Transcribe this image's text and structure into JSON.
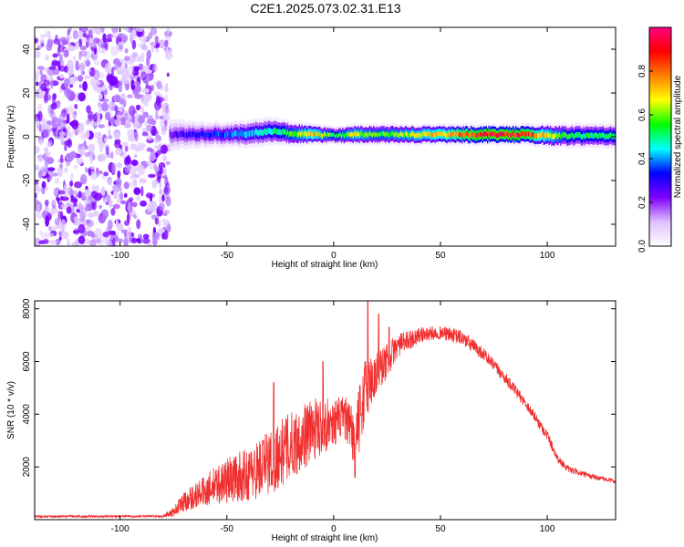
{
  "figure": {
    "title": "C2E1.2025.073.02.31.E13"
  },
  "chart_data": [
    {
      "type": "heatmap",
      "xlabel": "Height of straight line (km)",
      "ylabel": "Frequency (Hz)",
      "xlim": [
        -140,
        132
      ],
      "ylim": [
        -50,
        50
      ],
      "x_ticks": [
        -100,
        -50,
        0,
        50,
        100
      ],
      "y_ticks": [
        -40,
        -20,
        0,
        20,
        40
      ],
      "colorbar": {
        "label": "Normalized spectral amplitude",
        "range": [
          0,
          1
        ],
        "ticks": [
          0.0,
          0.2,
          0.4,
          0.6,
          0.8
        ],
        "tick_labels": [
          "0.0",
          "0.2",
          "0.4",
          "0.6",
          "0.8"
        ],
        "colors": [
          "#ffffff",
          "#e0c0ff",
          "#8000ff",
          "#0000ff",
          "#00ffff",
          "#00ff00",
          "#ffff00",
          "#ff8000",
          "#ff0000",
          "#ff0080"
        ]
      },
      "noise_region_x": [
        -140,
        -77
      ],
      "signal": [
        {
          "x": -77,
          "freq": 1.0,
          "amp": 0.25,
          "width": 4.5
        },
        {
          "x": -70,
          "freq": 1.0,
          "amp": 0.3,
          "width": 4.0
        },
        {
          "x": -60,
          "freq": 1.0,
          "amp": 0.35,
          "width": 3.5
        },
        {
          "x": -50,
          "freq": 1.0,
          "amp": 0.4,
          "width": 3.5
        },
        {
          "x": -40,
          "freq": 1.5,
          "amp": 0.45,
          "width": 4.0
        },
        {
          "x": -30,
          "freq": 2.5,
          "amp": 0.5,
          "width": 4.0
        },
        {
          "x": -20,
          "freq": 1.5,
          "amp": 0.6,
          "width": 3.5
        },
        {
          "x": -10,
          "freq": 1.0,
          "amp": 0.75,
          "width": 3.0
        },
        {
          "x": 0,
          "freq": 0.5,
          "amp": 0.55,
          "width": 2.5
        },
        {
          "x": 10,
          "freq": 1.0,
          "amp": 0.7,
          "width": 3.0
        },
        {
          "x": 20,
          "freq": 1.0,
          "amp": 0.6,
          "width": 3.0
        },
        {
          "x": 30,
          "freq": 1.0,
          "amp": 0.65,
          "width": 3.0
        },
        {
          "x": 40,
          "freq": 1.0,
          "amp": 0.7,
          "width": 3.0
        },
        {
          "x": 50,
          "freq": 1.0,
          "amp": 0.75,
          "width": 3.0
        },
        {
          "x": 60,
          "freq": 1.0,
          "amp": 0.85,
          "width": 3.0
        },
        {
          "x": 70,
          "freq": 1.0,
          "amp": 0.95,
          "width": 3.0
        },
        {
          "x": 80,
          "freq": 1.0,
          "amp": 0.95,
          "width": 3.0
        },
        {
          "x": 90,
          "freq": 1.0,
          "amp": 0.9,
          "width": 3.0
        },
        {
          "x": 100,
          "freq": 0.5,
          "amp": 0.7,
          "width": 3.5
        },
        {
          "x": 110,
          "freq": 0.5,
          "amp": 0.55,
          "width": 3.5
        },
        {
          "x": 120,
          "freq": 0.5,
          "amp": 0.55,
          "width": 3.5
        },
        {
          "x": 132,
          "freq": 0.5,
          "amp": 0.55,
          "width": 3.5
        }
      ]
    },
    {
      "type": "line",
      "xlabel": "Height of straight line (km)",
      "ylabel": "SNR (10 * v/v)",
      "xlim": [
        -140,
        132
      ],
      "ylim": [
        0,
        8300
      ],
      "x_ticks": [
        -100,
        -50,
        0,
        50,
        100
      ],
      "y_ticks": [
        2000,
        4000,
        6000,
        8000
      ],
      "color": "#f03030",
      "envelope": [
        {
          "x": -140,
          "mean": 120,
          "jitter": 40
        },
        {
          "x": -80,
          "mean": 130,
          "jitter": 40
        },
        {
          "x": -75,
          "mean": 300,
          "jitter": 200
        },
        {
          "x": -70,
          "mean": 700,
          "jitter": 400
        },
        {
          "x": -60,
          "mean": 1100,
          "jitter": 600
        },
        {
          "x": -50,
          "mean": 1500,
          "jitter": 900
        },
        {
          "x": -40,
          "mean": 1700,
          "jitter": 1000
        },
        {
          "x": -30,
          "mean": 2200,
          "jitter": 1300
        },
        {
          "x": -20,
          "mean": 2800,
          "jitter": 1300
        },
        {
          "x": -10,
          "mean": 3400,
          "jitter": 1200
        },
        {
          "x": 0,
          "mean": 3700,
          "jitter": 900
        },
        {
          "x": 5,
          "mean": 3900,
          "jitter": 800
        },
        {
          "x": 10,
          "mean": 3000,
          "jitter": 1200
        },
        {
          "x": 15,
          "mean": 5000,
          "jitter": 1300
        },
        {
          "x": 20,
          "mean": 5500,
          "jitter": 900
        },
        {
          "x": 30,
          "mean": 6600,
          "jitter": 450
        },
        {
          "x": 40,
          "mean": 7000,
          "jitter": 300
        },
        {
          "x": 50,
          "mean": 7100,
          "jitter": 250
        },
        {
          "x": 60,
          "mean": 6900,
          "jitter": 300
        },
        {
          "x": 70,
          "mean": 6300,
          "jitter": 250
        },
        {
          "x": 80,
          "mean": 5400,
          "jitter": 220
        },
        {
          "x": 90,
          "mean": 4400,
          "jitter": 200
        },
        {
          "x": 100,
          "mean": 3200,
          "jitter": 200
        },
        {
          "x": 105,
          "mean": 2300,
          "jitter": 150
        },
        {
          "x": 110,
          "mean": 1900,
          "jitter": 120
        },
        {
          "x": 120,
          "mean": 1650,
          "jitter": 100
        },
        {
          "x": 132,
          "mean": 1450,
          "jitter": 80
        }
      ],
      "peaks": [
        {
          "x": -28,
          "y": 5200
        },
        {
          "x": -5,
          "y": 6000
        },
        {
          "x": 10,
          "y": 1600
        },
        {
          "x": 13,
          "y": 4000
        },
        {
          "x": 16,
          "y": 8300
        },
        {
          "x": 21,
          "y": 7800
        },
        {
          "x": 26,
          "y": 7300
        }
      ]
    }
  ]
}
